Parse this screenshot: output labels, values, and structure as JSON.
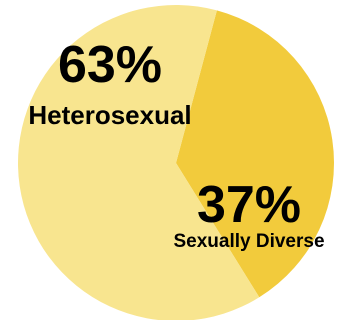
{
  "chart_data": {
    "type": "pie",
    "categories": [
      "Heterosexual",
      "Sexually Diverse"
    ],
    "values": [
      63,
      37
    ],
    "value_labels": [
      "63%",
      "37%"
    ],
    "colors": [
      "#f8e58f",
      "#f2cb3c"
    ],
    "start_angle_deg": 15,
    "title": "",
    "legend": "none"
  }
}
